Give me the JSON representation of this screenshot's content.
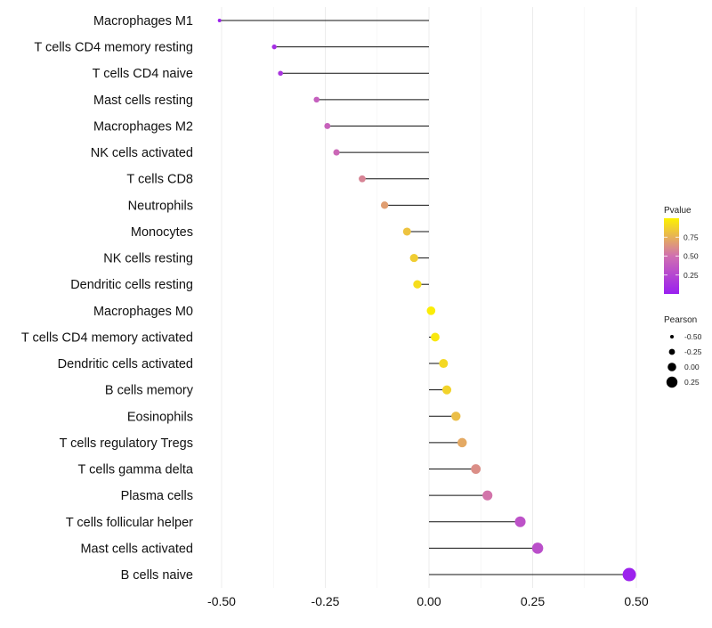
{
  "chart_data": {
    "type": "lollipop",
    "title": "",
    "xlabel": "",
    "ylabel": "",
    "xlim": [
      -0.5,
      0.5
    ],
    "x_ticks": [
      -0.5,
      -0.25,
      0.0,
      0.25,
      0.5
    ],
    "x_tick_labels": [
      "-0.50",
      "-0.25",
      "0.00",
      "0.25",
      "0.50"
    ],
    "grid": true,
    "categories": [
      "Macrophages M1",
      "T cells CD4 memory resting",
      "T cells CD4 naive",
      "Mast cells resting",
      "Macrophages M2",
      "NK cells activated",
      "T cells CD8",
      "Neutrophils",
      "Monocytes",
      "NK cells resting",
      "Dendritic cells resting",
      "Macrophages M0",
      "T cells CD4 memory activated",
      "Dendritic cells activated",
      "B cells memory",
      "Eosinophils",
      "T cells regulatory  Tregs",
      "T cells gamma delta",
      "Plasma cells",
      "T cells follicular helper",
      "Mast cells activated",
      "B cells naive"
    ],
    "pearson": [
      -0.505,
      -0.373,
      -0.358,
      -0.271,
      -0.245,
      -0.223,
      -0.161,
      -0.107,
      -0.053,
      -0.036,
      -0.028,
      0.005,
      0.015,
      0.035,
      0.043,
      0.065,
      0.08,
      0.113,
      0.141,
      0.22,
      0.262,
      0.483
    ],
    "pvalue": [
      0.02,
      0.1,
      0.14,
      0.4,
      0.42,
      0.45,
      0.58,
      0.68,
      0.82,
      0.86,
      0.92,
      0.98,
      0.96,
      0.9,
      0.88,
      0.8,
      0.72,
      0.62,
      0.52,
      0.32,
      0.3,
      0.02
    ],
    "legend_pvalue": {
      "title": "Pvalue",
      "ticks": [
        0.25,
        0.5,
        0.75
      ],
      "tick_labels": [
        "0.25",
        "0.50",
        "0.75"
      ],
      "range": [
        0.0,
        1.0
      ],
      "color_low": "#9a1ff0",
      "color_mid": "#d06fb1",
      "color_high": "#fdf200",
      "placement": "right"
    },
    "legend_pearson": {
      "title": "Pearson",
      "values": [
        -0.5,
        -0.25,
        0.0,
        0.25
      ],
      "labels": [
        "-0.50",
        "-0.25",
        "0.00",
        "0.25"
      ],
      "placement": "right"
    }
  }
}
